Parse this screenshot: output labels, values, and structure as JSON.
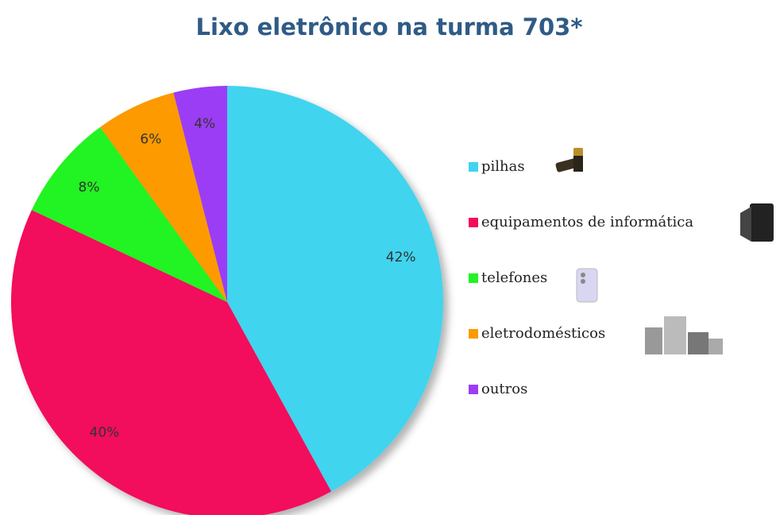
{
  "chart_data": {
    "type": "pie",
    "title": "Lixo eletrônico na turma 703*",
    "categories": [
      "pilhas",
      "equipamentos de informática",
      "telefones",
      "eletrodomésticos",
      "outros"
    ],
    "values": [
      42,
      40,
      8,
      6,
      4
    ],
    "value_labels": [
      "42%",
      "40%",
      "8%",
      "6%",
      "4%"
    ],
    "colors": [
      "#3fd4ef",
      "#f20a5d",
      "#22f322",
      "#fc9a02",
      "#9b3df5"
    ],
    "legend": "right"
  }
}
